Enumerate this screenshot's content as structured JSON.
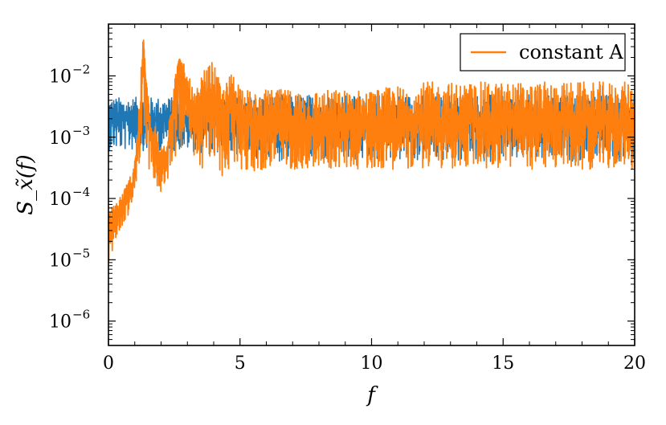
{
  "chart_data": {
    "type": "line",
    "title": "",
    "xlabel": "f",
    "ylabel": "S_x̃(f)",
    "xlim": [
      0,
      20
    ],
    "ylim": [
      4e-07,
      0.07
    ],
    "yscale": "log",
    "x_ticks": [
      0,
      5,
      10,
      15,
      20
    ],
    "x_tick_labels": [
      "0",
      "5",
      "10",
      "15",
      "20"
    ],
    "y_ticks": [
      1e-06,
      1e-05,
      0.0001,
      0.001,
      0.01
    ],
    "y_tick_labels": [
      {
        "base": "10",
        "exp": "−6"
      },
      {
        "base": "10",
        "exp": "−5"
      },
      {
        "base": "10",
        "exp": "−4"
      },
      {
        "base": "10",
        "exp": "−3"
      },
      {
        "base": "10",
        "exp": "−2"
      }
    ],
    "grid": false,
    "legend_position": "top-right",
    "series": [
      {
        "color": "#1f77b4",
        "description": "broadband noise, roughly flat",
        "x": [
          0,
          1,
          2,
          3,
          4,
          5,
          6,
          7,
          8,
          9,
          10,
          11,
          12,
          13,
          14,
          15,
          16,
          17,
          18,
          19,
          20
        ],
        "values": [
          0.002,
          0.002,
          0.002,
          0.002,
          0.002,
          0.0019,
          0.0019,
          0.0019,
          0.0018,
          0.0018,
          0.0018,
          0.0018,
          0.0018,
          0.0018,
          0.0018,
          0.0018,
          0.0018,
          0.0018,
          0.0018,
          0.0018,
          0.0018
        ],
        "band_low": [
          0.0006,
          0.0006,
          0.0006,
          0.0006,
          0.0005,
          0.0005,
          0.0004,
          0.0004,
          0.0004,
          0.0004,
          0.0004,
          0.0004,
          0.0004,
          0.0004,
          0.0004,
          0.0004,
          0.0004,
          0.0004,
          0.0004,
          0.0004,
          0.0004
        ],
        "band_high": [
          0.0045,
          0.0045,
          0.0045,
          0.0045,
          0.0045,
          0.0045,
          0.005,
          0.005,
          0.005,
          0.005,
          0.005,
          0.005,
          0.005,
          0.005,
          0.005,
          0.005,
          0.005,
          0.005,
          0.005,
          0.005,
          0.005
        ]
      },
      {
        "name": "constant A",
        "color": "#ff7f0e",
        "x": [
          0.0,
          0.3,
          0.6,
          0.9,
          1.1,
          1.25,
          1.32,
          1.45,
          1.6,
          1.8,
          2.0,
          2.2,
          2.5,
          2.7,
          2.9,
          3.3,
          3.6,
          4.0,
          4.3,
          4.7,
          5.0,
          5.5,
          6.0,
          7.0,
          8.0,
          9.0,
          10.0,
          12.0,
          14.0,
          16.0,
          18.0,
          20.0
        ],
        "values": [
          3e-05,
          5e-05,
          8e-05,
          0.00015,
          0.0006,
          0.005,
          0.045,
          0.004,
          0.0009,
          0.0006,
          0.0003,
          0.0005,
          0.004,
          0.02,
          0.006,
          0.002,
          0.004,
          0.006,
          0.002,
          0.004,
          0.003,
          0.0015,
          0.002,
          0.0018,
          0.0016,
          0.0017,
          0.0018,
          0.0018,
          0.0018,
          0.0018,
          0.0018,
          0.0018
        ],
        "band_low": [
          8e-06,
          2e-05,
          4e-05,
          7e-05,
          0.0002,
          0.0008,
          0.002,
          0.0004,
          0.00025,
          0.00015,
          0.0001,
          0.00015,
          0.0004,
          0.0008,
          0.0004,
          0.0003,
          0.0003,
          0.0003,
          0.0002,
          0.0003,
          0.0003,
          0.00025,
          0.0003,
          0.0003,
          0.0003,
          0.0003,
          0.0003,
          0.0003,
          0.0003,
          0.0003,
          0.0003,
          0.0003
        ],
        "band_high": [
          6e-05,
          0.0001,
          0.00015,
          0.0003,
          0.0015,
          0.015,
          0.045,
          0.01,
          0.002,
          0.0015,
          0.0008,
          0.0015,
          0.01,
          0.02,
          0.015,
          0.005,
          0.012,
          0.018,
          0.006,
          0.012,
          0.008,
          0.005,
          0.006,
          0.006,
          0.006,
          0.006,
          0.006,
          0.008,
          0.008,
          0.008,
          0.008,
          0.008
        ]
      }
    ]
  }
}
